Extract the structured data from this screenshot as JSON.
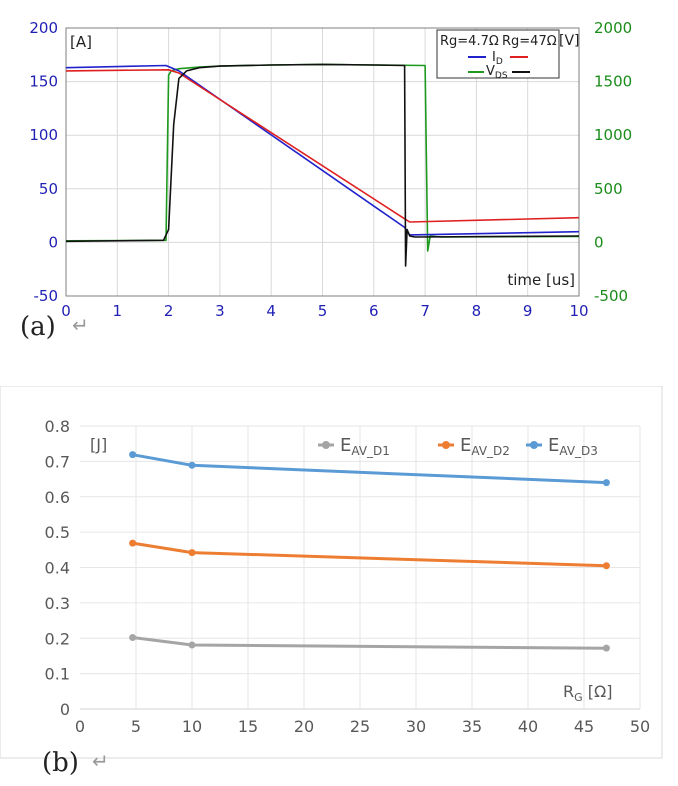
{
  "captions": {
    "a": "(a)",
    "b": "(b)",
    "return_mark": "↵"
  },
  "chart_data": [
    {
      "type": "line",
      "id": "a",
      "y_left_unit": "[A]",
      "y_right_unit": "[V]",
      "xlabel": "time [us]",
      "xlim": [
        0,
        10
      ],
      "ylim_left": [
        -50,
        200
      ],
      "ylim_right": [
        -500,
        2000
      ],
      "xticks": [
        "0",
        "1",
        "2",
        "3",
        "4",
        "5",
        "6",
        "7",
        "8",
        "9",
        "10"
      ],
      "yticks_left": [
        "200",
        "150",
        "100",
        "50",
        "0",
        "-50"
      ],
      "yticks_right": [
        "2000",
        "1500",
        "1000",
        "500",
        "0",
        "-500"
      ],
      "axis_colors": {
        "left": "#1f1fb4",
        "right": "#1a8c1a"
      },
      "grid": true,
      "legend": {
        "position": "top-right",
        "col1": "Rg=4.7Ω",
        "col2": "Rg=47Ω",
        "id_label": "I",
        "id_sub": "D",
        "vds_label": "V",
        "vds_sub": "DS"
      },
      "series": [
        {
          "name": "I_D Rg=4.7Ω",
          "axis": "left",
          "color": "#2222cc",
          "x": [
            0,
            1.95,
            2.0,
            2.2,
            6.6,
            6.7,
            10
          ],
          "y": [
            163,
            165,
            164,
            160,
            14,
            7,
            10
          ]
        },
        {
          "name": "I_D Rg=47Ω",
          "axis": "left",
          "color": "#e02020",
          "x": [
            0,
            2.0,
            2.2,
            6.6,
            6.7,
            10
          ],
          "y": [
            160,
            161,
            158,
            22,
            19,
            23
          ]
        },
        {
          "name": "V_DS Rg=4.7Ω",
          "axis": "right",
          "color": "#111111",
          "x": [
            0,
            1.9,
            2.0,
            2.1,
            2.2,
            2.35,
            2.6,
            3,
            4,
            5,
            6,
            6.6,
            6.62,
            6.65,
            6.7,
            6.8,
            10
          ],
          "y": [
            10,
            20,
            120,
            1100,
            1530,
            1600,
            1630,
            1645,
            1655,
            1660,
            1655,
            1650,
            -220,
            120,
            60,
            50,
            60
          ]
        },
        {
          "name": "V_DS Rg=47Ω",
          "axis": "right",
          "color": "#1d9a1d",
          "x": [
            0,
            1.95,
            2.0,
            2.05,
            2.2,
            2.6,
            3,
            4,
            5,
            6,
            7.0,
            7.05,
            7.1,
            7.3,
            10
          ],
          "y": [
            15,
            20,
            1560,
            1600,
            1620,
            1635,
            1645,
            1655,
            1660,
            1655,
            1650,
            -80,
            60,
            50,
            55
          ]
        }
      ]
    },
    {
      "type": "line",
      "id": "b",
      "ylabel_unit": "[J]",
      "xlabel": "R",
      "xlabel_sub": "G",
      "xlabel_unit": " [Ω]",
      "xlim": [
        0,
        50
      ],
      "ylim": [
        0,
        0.8
      ],
      "xticks": [
        "0",
        "5",
        "10",
        "15",
        "20",
        "25",
        "30",
        "35",
        "40",
        "45",
        "50"
      ],
      "yticks": [
        "0.8",
        "0.7",
        "0.6",
        "0.5",
        "0.4",
        "0.3",
        "0.2",
        "0.1",
        "0"
      ],
      "grid": true,
      "legend_position": "top-right",
      "series": [
        {
          "name": "E",
          "sub": "AV_D1",
          "color": "#a5a5a5",
          "x": [
            4.7,
            10,
            47
          ],
          "y": [
            0.202,
            0.181,
            0.172
          ]
        },
        {
          "name": "E",
          "sub": "AV_D2",
          "color": "#ed7d31",
          "x": [
            4.7,
            10,
            47
          ],
          "y": [
            0.469,
            0.442,
            0.405
          ]
        },
        {
          "name": "E",
          "sub": "AV_D3",
          "color": "#5b9bd5",
          "x": [
            4.7,
            10,
            47
          ],
          "y": [
            0.719,
            0.689,
            0.64
          ]
        }
      ]
    }
  ]
}
